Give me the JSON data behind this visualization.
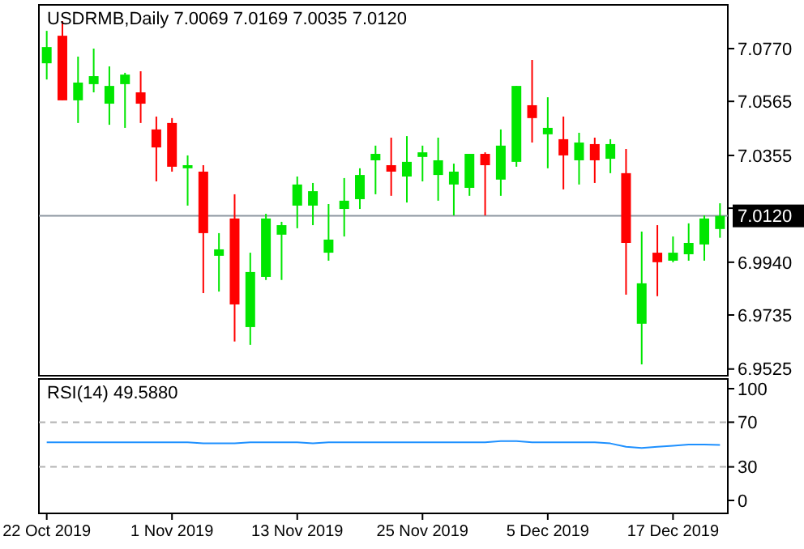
{
  "chart_data": [
    {
      "type": "candlestick",
      "title": "USDRMB,Daily 7.0069 7.0169 7.0035 7.0120",
      "categories": [
        null,
        null,
        null,
        null,
        null,
        null,
        null,
        null,
        null,
        null,
        null,
        null,
        null,
        null,
        null,
        null,
        null,
        null,
        null,
        null,
        null,
        null,
        null,
        null,
        null,
        null,
        null,
        null,
        null,
        null,
        null,
        null,
        null,
        null,
        null,
        null,
        null,
        null,
        null,
        null,
        null,
        null,
        null,
        null
      ],
      "ohlc": [
        [
          7.0713,
          7.0839,
          7.065,
          7.0776
        ],
        [
          7.082,
          7.0877,
          7.0569,
          7.0569
        ],
        [
          7.0569,
          7.0739,
          7.0481,
          7.0638
        ],
        [
          7.0632,
          7.077,
          7.06,
          7.0663
        ],
        [
          7.0556,
          7.0701,
          7.0474,
          7.0625
        ],
        [
          7.0632,
          7.0676,
          7.0462,
          7.0669
        ],
        [
          7.06,
          7.0682,
          7.0481,
          7.0556
        ],
        [
          7.0456,
          7.0506,
          7.0254,
          7.0386
        ],
        [
          7.0481,
          7.05,
          7.0292,
          7.0311
        ],
        [
          7.0305,
          7.0355,
          7.016,
          7.0317
        ],
        [
          7.0292,
          7.0317,
          6.982,
          7.0053
        ],
        [
          6.9965,
          7.0053,
          6.9826,
          6.999
        ],
        [
          7.011,
          7.0204,
          6.9632,
          6.9776
        ],
        [
          6.9688,
          6.9977,
          6.9619,
          6.9902
        ],
        [
          6.9883,
          7.0128,
          6.9871,
          7.011
        ],
        [
          7.0047,
          7.0097,
          6.9871,
          7.0084
        ],
        [
          7.016,
          7.0273,
          7.0072,
          7.0242
        ],
        [
          7.016,
          7.0248,
          7.0084,
          7.0216
        ],
        [
          6.9977,
          7.0166,
          6.9946,
          7.0028
        ],
        [
          7.0147,
          7.0267,
          7.004,
          7.0179
        ],
        [
          7.0185,
          7.0305,
          7.0147,
          7.0279
        ],
        [
          7.0336,
          7.0393,
          7.0204,
          7.0361
        ],
        [
          7.0317,
          7.0424,
          7.0198,
          7.0292
        ],
        [
          7.0273,
          7.043,
          7.0172,
          7.033
        ],
        [
          7.0349,
          7.0393,
          7.0254,
          7.0367
        ],
        [
          7.0279,
          7.0424,
          7.0179,
          7.0336
        ],
        [
          7.0242,
          7.0323,
          7.0122,
          7.0292
        ],
        [
          7.0229,
          7.0361,
          7.0198,
          7.0361
        ],
        [
          7.0361,
          7.0367,
          7.0122,
          7.0317
        ],
        [
          7.0261,
          7.0456,
          7.0198,
          7.0393
        ],
        [
          7.033,
          7.0625,
          7.0311,
          7.0625
        ],
        [
          7.055,
          7.0726,
          7.0405,
          7.05
        ],
        [
          7.0437,
          7.0581,
          7.0305,
          7.0462
        ],
        [
          7.0418,
          7.0506,
          7.0223,
          7.0355
        ],
        [
          7.0336,
          7.0443,
          7.0242,
          7.0405
        ],
        [
          7.0399,
          7.0424,
          7.0248,
          7.0336
        ],
        [
          7.0342,
          7.0418,
          7.0286,
          7.0399
        ],
        [
          7.0286,
          7.038,
          6.9814,
          7.0015
        ],
        [
          6.9701,
          7.0059,
          6.9543,
          6.9858
        ],
        [
          6.9977,
          7.0084,
          6.9808,
          6.994
        ],
        [
          6.9946,
          7.004,
          6.994,
          6.9977
        ],
        [
          6.9971,
          7.0091,
          6.9946,
          7.0015
        ],
        [
          7.0009,
          7.0122,
          6.9946,
          7.011
        ],
        [
          7.0069,
          7.0169,
          7.0035,
          7.012
        ]
      ],
      "colors": [
        "#00e600",
        "#ff0000",
        "#00e600",
        "#00e600",
        "#00e600",
        "#00e600",
        "#ff0000",
        "#ff0000",
        "#ff0000",
        "#00e600",
        "#ff0000",
        "#00e600",
        "#ff0000",
        "#00e600",
        "#00e600",
        "#00e600",
        "#00e600",
        "#00e600",
        "#00e600",
        "#00e600",
        "#00e600",
        "#00e600",
        "#ff0000",
        "#00e600",
        "#00e600",
        "#00e600",
        "#00e600",
        "#00e600",
        "#ff0000",
        "#00e600",
        "#00e600",
        "#ff0000",
        "#00e600",
        "#ff0000",
        "#00e600",
        "#ff0000",
        "#00e600",
        "#ff0000",
        "#00e600",
        "#ff0000",
        "#00e600",
        "#00e600",
        "#00e600",
        "#00e600"
      ],
      "ylim": [
        6.9499,
        7.094
      ],
      "yticks": [
        {
          "value": 7.077,
          "label": "7.0770"
        },
        {
          "value": 7.0565,
          "label": "7.0565"
        },
        {
          "value": 7.0355,
          "label": "7.0355"
        },
        {
          "value": 7.015,
          "label": null
        },
        {
          "value": 6.994,
          "label": "6.9940"
        },
        {
          "value": 6.9735,
          "label": "6.9735"
        },
        {
          "value": 6.9525,
          "label": "6.9525"
        }
      ],
      "ref_lines": [
        {
          "axis": "y",
          "value": 7.012,
          "label": "7.0120",
          "color": "#8c96a0"
        }
      ],
      "tick_labels": "y"
    },
    {
      "type": "line",
      "title": "RSI(14) 49.5880",
      "categories": [
        "22 Oct 2019",
        null,
        null,
        null,
        null,
        null,
        null,
        null,
        "1 Nov 2019",
        null,
        null,
        null,
        null,
        null,
        null,
        null,
        "13 Nov 2019",
        null,
        null,
        null,
        null,
        null,
        null,
        null,
        "25 Nov 2019",
        null,
        null,
        null,
        null,
        null,
        null,
        null,
        "5 Dec 2019",
        null,
        null,
        null,
        null,
        null,
        null,
        null,
        "17 Dec 2019",
        null,
        null,
        null
      ],
      "series": [
        {
          "color": "#1e90ff",
          "values": [
            52,
            52,
            52,
            52,
            52,
            52,
            52,
            52,
            52,
            52,
            51,
            51,
            51,
            52,
            52,
            52,
            52,
            51,
            52,
            52,
            52,
            52,
            52,
            52,
            52,
            52,
            52,
            52,
            52,
            53,
            53,
            52,
            52,
            52,
            52,
            52,
            51,
            48,
            47,
            48,
            49,
            50,
            50,
            49.588
          ]
        }
      ],
      "ylim": [
        -11.6,
        108.7
      ],
      "yticks": [
        0,
        30,
        70,
        100
      ],
      "ref_lines": [
        {
          "axis": "y",
          "value": 30,
          "color": "#b4b4b4",
          "line_style": "dashed"
        },
        {
          "axis": "y",
          "value": 70,
          "color": "#b4b4b4",
          "line_style": "dashed"
        }
      ]
    }
  ]
}
